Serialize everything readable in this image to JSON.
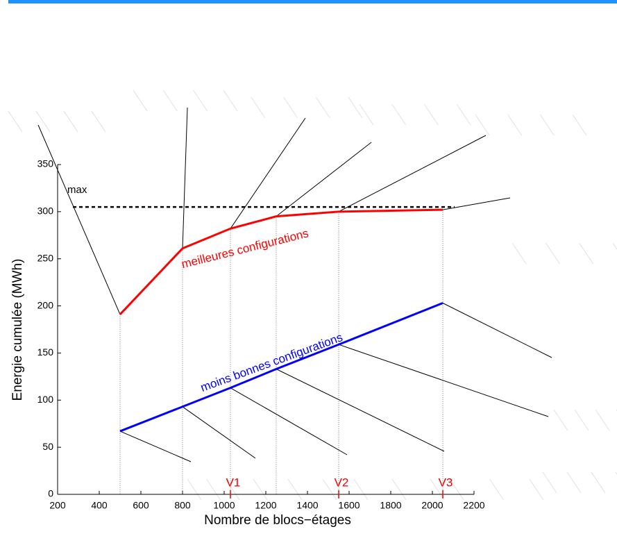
{
  "chart_data": {
    "type": "line",
    "x_label": "Nombre de blocs−étages",
    "y_label": "Energie cumulée (MWh)",
    "x": [
      500,
      800,
      1030,
      1250,
      1550,
      2050
    ],
    "series": [
      {
        "name": "meilleures configurations",
        "color": "#ff0000",
        "values": [
          191,
          261,
          282,
          295,
          300,
          302
        ]
      },
      {
        "name": "moins bonnes configurations",
        "color": "#0000ff",
        "values": [
          67,
          93,
          113,
          133,
          159,
          203
        ]
      }
    ],
    "max_line": {
      "label": "max",
      "value": 305
    },
    "markers": [
      {
        "label": "V1",
        "x": 1030
      },
      {
        "label": "V2",
        "x": 1550
      },
      {
        "label": "V3",
        "x": 2050
      }
    ],
    "xlim": [
      200,
      2200
    ],
    "xticks": [
      200,
      400,
      600,
      800,
      1000,
      1200,
      1400,
      1600,
      1800,
      2000,
      2200
    ],
    "ylim": [
      0,
      350
    ],
    "yticks": [
      0,
      50,
      100,
      150,
      200,
      250,
      300,
      350
    ]
  }
}
